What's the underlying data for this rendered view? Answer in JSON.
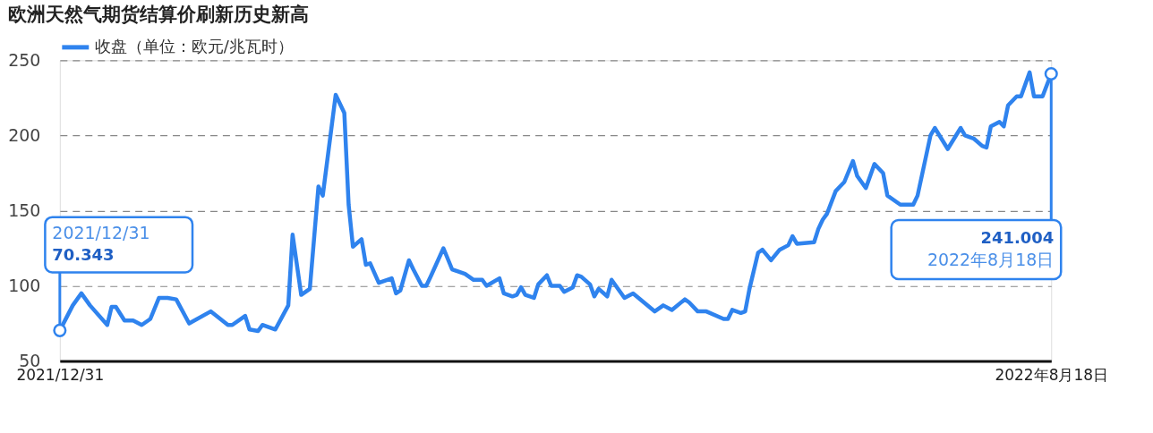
{
  "chart_data": {
    "type": "line",
    "title": "欧洲天然气期货结算价刷新历史新高",
    "x": [
      "2021-12-31",
      "2022-01-03",
      "2022-01-05",
      "2022-01-07",
      "2022-01-11",
      "2022-01-12",
      "2022-01-13",
      "2022-01-15",
      "2022-01-17",
      "2022-01-19",
      "2022-01-21",
      "2022-01-23",
      "2022-01-25",
      "2022-01-27",
      "2022-01-30",
      "2022-02-04",
      "2022-02-08",
      "2022-02-09",
      "2022-02-12",
      "2022-02-13",
      "2022-02-15",
      "2022-02-16",
      "2022-02-19",
      "2022-02-22",
      "2022-02-23",
      "2022-02-25",
      "2022-02-27",
      "2022-03-01",
      "2022-03-02",
      "2022-03-05",
      "2022-03-07",
      "2022-03-08",
      "2022-03-09",
      "2022-03-11",
      "2022-03-12",
      "2022-03-13",
      "2022-03-15",
      "2022-03-18",
      "2022-03-19",
      "2022-03-20",
      "2022-03-22",
      "2022-03-23",
      "2022-03-25",
      "2022-03-26",
      "2022-03-27",
      "2022-03-30",
      "2022-04-01",
      "2022-04-04",
      "2022-04-06",
      "2022-04-08",
      "2022-04-09",
      "2022-04-12",
      "2022-04-13",
      "2022-04-15",
      "2022-04-16",
      "2022-04-17",
      "2022-04-18",
      "2022-04-20",
      "2022-04-21",
      "2022-04-23",
      "2022-04-24",
      "2022-04-26",
      "2022-04-27",
      "2022-04-29",
      "2022-04-30",
      "2022-05-01",
      "2022-05-03",
      "2022-05-04",
      "2022-05-05",
      "2022-05-07",
      "2022-05-08",
      "2022-05-10",
      "2022-05-11",
      "2022-05-13",
      "2022-05-18",
      "2022-05-20",
      "2022-05-22",
      "2022-05-25",
      "2022-05-26",
      "2022-05-28",
      "2022-05-30",
      "2022-06-03",
      "2022-06-04",
      "2022-06-05",
      "2022-06-07",
      "2022-06-08",
      "2022-06-09",
      "2022-06-11",
      "2022-06-12",
      "2022-06-14",
      "2022-06-16",
      "2022-06-18",
      "2022-06-19",
      "2022-06-20",
      "2022-06-24",
      "2022-06-25",
      "2022-06-26",
      "2022-06-27",
      "2022-06-29",
      "2022-06-30",
      "2022-07-01",
      "2022-07-03",
      "2022-07-04",
      "2022-07-06",
      "2022-07-08",
      "2022-07-10",
      "2022-07-11",
      "2022-07-14",
      "2022-07-17",
      "2022-07-18",
      "2022-07-21",
      "2022-07-22",
      "2022-07-25",
      "2022-07-28",
      "2022-07-29",
      "2022-07-31",
      "2022-08-02",
      "2022-08-03",
      "2022-08-04",
      "2022-08-06",
      "2022-08-07",
      "2022-08-08",
      "2022-08-10",
      "2022-08-11",
      "2022-08-13",
      "2022-08-14",
      "2022-08-16",
      "2022-08-18"
    ],
    "series": [
      {
        "name": "收盘（单位：欧元/兆瓦时）",
        "color": "#2f83ee",
        "values": [
          70.343,
          87,
          95,
          87,
          74,
          86,
          86,
          77,
          77,
          74,
          78,
          92,
          92,
          91,
          75,
          83,
          74,
          74,
          80,
          71,
          70,
          74,
          71,
          87,
          134,
          94,
          98,
          166,
          160,
          227,
          215,
          154,
          126,
          131,
          114,
          115,
          102,
          105,
          95,
          97,
          117,
          111,
          100,
          100,
          106,
          125,
          111,
          108,
          104,
          104,
          100,
          105,
          95,
          93,
          94,
          99,
          94,
          92,
          101,
          107,
          100,
          100,
          96,
          99,
          107,
          106,
          101,
          93,
          98,
          93,
          104,
          96,
          92,
          95,
          83,
          87,
          84,
          91,
          89,
          83,
          83,
          78,
          78,
          84,
          82,
          83,
          98,
          122,
          124,
          117,
          124,
          127,
          133,
          128,
          129,
          138,
          144,
          148,
          163,
          166,
          169,
          183,
          173,
          165,
          181,
          175,
          160,
          154,
          154,
          160,
          200,
          205,
          191,
          205,
          200,
          198,
          193,
          192,
          206,
          209,
          206,
          220,
          226,
          226,
          242,
          226,
          226,
          241.004
        ]
      }
    ],
    "xlim": [
      "2021-12-31",
      "2022-08-18"
    ],
    "xticks": [
      {
        "value": "2021-12-31",
        "label": "2021/12/31"
      },
      {
        "value": "2022-08-18",
        "label": "2022年8月18日"
      }
    ],
    "ylim": [
      50,
      250
    ],
    "yticks": [
      50,
      100,
      150,
      200,
      250
    ],
    "grid": "y",
    "legend": "top",
    "marker": "none",
    "line_style": "solid",
    "annotations": [
      "2021/12/31",
      {
        "text": "70.343",
        "x": "2021-12-31",
        "y": 70.343
      },
      {
        "text": "241.004",
        "x": "2022-08-18",
        "y": 241.004
      },
      "2022年8月18日"
    ]
  }
}
